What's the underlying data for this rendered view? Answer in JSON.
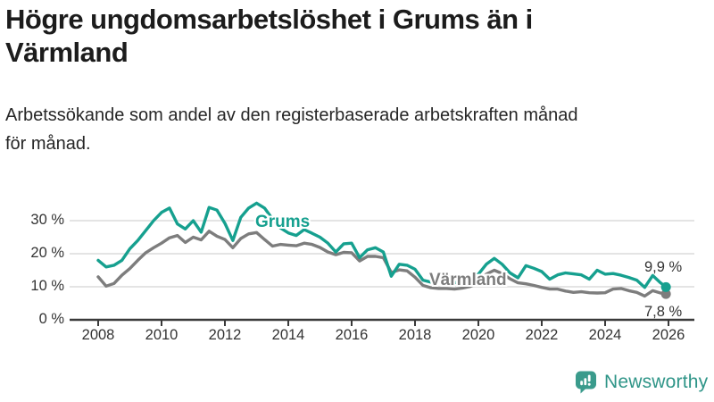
{
  "header": {
    "title": "Högre ungdomsarbetslöshet i Grums än i Värmland",
    "subtitle": "Arbetssökande som andel av den registerbaserade arbetskraften månad för månad."
  },
  "chart_data": {
    "type": "line",
    "title": "Högre ungdomsarbetslöshet i Grums än i Värmland",
    "xlabel": "",
    "ylabel": "Arbetssökande som andel av den registerbaserade arbetskraften",
    "unit": "%",
    "grid": "horizontal",
    "xlim": [
      2007.1,
      2026.8
    ],
    "ylim": [
      0,
      38
    ],
    "xticks": [
      2008,
      2010,
      2012,
      2014,
      2016,
      2018,
      2020,
      2022,
      2024,
      2026
    ],
    "yticks": [
      0,
      10,
      20,
      30
    ],
    "ytick_labels": [
      "0 %",
      "10 %",
      "20 %",
      "30 %"
    ],
    "x": [
      2008,
      2008.25,
      2008.5,
      2008.75,
      2009,
      2009.25,
      2009.5,
      2009.75,
      2010,
      2010.25,
      2010.5,
      2010.75,
      2011,
      2011.25,
      2011.5,
      2011.75,
      2012,
      2012.25,
      2012.5,
      2012.75,
      2013,
      2013.25,
      2013.5,
      2013.75,
      2014,
      2014.25,
      2014.5,
      2014.75,
      2015,
      2015.25,
      2015.5,
      2015.75,
      2016,
      2016.25,
      2016.5,
      2016.75,
      2017,
      2017.25,
      2017.5,
      2017.75,
      2018,
      2018.25,
      2018.5,
      2018.75,
      2019,
      2019.25,
      2019.5,
      2019.75,
      2020,
      2020.25,
      2020.5,
      2020.75,
      2021,
      2021.25,
      2021.5,
      2021.75,
      2022,
      2022.25,
      2022.5,
      2022.75,
      2023,
      2023.25,
      2023.5,
      2023.75,
      2024,
      2024.25,
      2024.5,
      2024.75,
      2025,
      2025.25,
      2025.5,
      2025.75,
      2025.92
    ],
    "series": [
      {
        "name": "Grums",
        "color": "#16a08f",
        "end_label": "9,9 %",
        "end_value": 9.9,
        "values": [
          18.0,
          16.0,
          16.5,
          18.0,
          21.5,
          24.0,
          27.0,
          30.0,
          32.5,
          33.8,
          29.0,
          27.5,
          30.0,
          26.5,
          34.0,
          33.2,
          29.2,
          24.0,
          31.0,
          33.8,
          35.3,
          33.8,
          30.5,
          27.8,
          26.3,
          25.5,
          27.3,
          26.2,
          25.0,
          23.2,
          20.5,
          23.0,
          23.2,
          18.8,
          21.2,
          21.8,
          20.5,
          13.2,
          16.8,
          16.5,
          15.3,
          12.0,
          11.4,
          12.6,
          11.8,
          11.2,
          11.6,
          12.3,
          13.8,
          16.8,
          18.6,
          16.8,
          14.2,
          12.7,
          16.4,
          15.6,
          14.6,
          12.3,
          13.6,
          14.2,
          13.9,
          13.6,
          12.3,
          15.0,
          13.8,
          14.0,
          13.5,
          12.8,
          12.0,
          9.8,
          13.4,
          11.2,
          9.9
        ]
      },
      {
        "name": "Värmland",
        "color": "#7d7d7d",
        "end_label": "7,8 %",
        "end_value": 7.8,
        "values": [
          13.0,
          10.2,
          11.0,
          13.5,
          15.5,
          18.0,
          20.3,
          21.8,
          23.2,
          24.8,
          25.5,
          23.4,
          25.0,
          24.2,
          26.8,
          25.3,
          24.3,
          21.8,
          24.6,
          26.0,
          26.4,
          24.3,
          22.3,
          22.8,
          22.6,
          22.4,
          23.2,
          22.8,
          21.9,
          20.5,
          19.7,
          20.4,
          20.3,
          17.8,
          19.2,
          19.2,
          18.8,
          14.3,
          15.1,
          14.8,
          12.9,
          10.4,
          9.7,
          9.5,
          9.5,
          9.3,
          9.6,
          10.1,
          11.2,
          13.8,
          15.0,
          14.0,
          12.4,
          11.2,
          10.9,
          10.4,
          9.8,
          9.3,
          9.3,
          8.7,
          8.3,
          8.5,
          8.2,
          8.1,
          8.2,
          9.3,
          9.5,
          8.8,
          8.3,
          7.2,
          8.8,
          8.1,
          7.8
        ]
      }
    ],
    "colors": {
      "axis": "#3a3a3a",
      "grid": "#dcdcdc",
      "tick_text": "#333333"
    }
  },
  "footer": {
    "brand": "Newsworthy",
    "brand_color": "#3a9b8c"
  }
}
